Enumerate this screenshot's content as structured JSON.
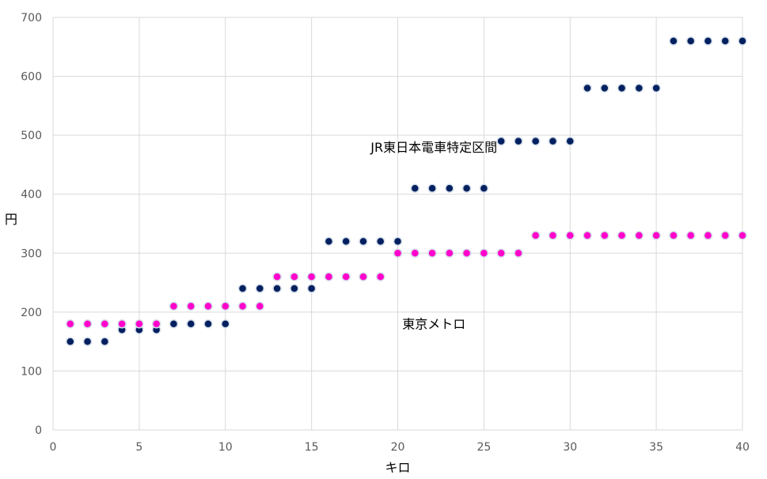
{
  "chart_data": {
    "type": "scatter",
    "xlabel": "キロ",
    "ylabel": "円",
    "xlim": [
      0,
      40
    ],
    "ylim": [
      0,
      700
    ],
    "xticks": [
      0,
      5,
      10,
      15,
      20,
      25,
      30,
      35,
      40
    ],
    "yticks": [
      0,
      100,
      200,
      300,
      400,
      500,
      600,
      700
    ],
    "grid": true,
    "legend": "none",
    "annotations": [
      {
        "text": "JR東日本電車特定区間",
        "x": 22.1,
        "y": 472
      },
      {
        "text": "東京メトロ",
        "x": 22.1,
        "y": 172
      }
    ],
    "series": [
      {
        "color": "#002060",
        "x": [
          1,
          2,
          3,
          4,
          5,
          6,
          7,
          8,
          9,
          10,
          11,
          12,
          13,
          14,
          15,
          16,
          17,
          18,
          19,
          20,
          21,
          22,
          23,
          24,
          25,
          26,
          27,
          28,
          29,
          30,
          31,
          32,
          33,
          34,
          35,
          36,
          37,
          38,
          39,
          40
        ],
        "values": [
          150,
          150,
          150,
          170,
          170,
          170,
          180,
          180,
          180,
          180,
          240,
          240,
          240,
          240,
          240,
          320,
          320,
          320,
          320,
          320,
          410,
          410,
          410,
          410,
          410,
          490,
          490,
          490,
          490,
          490,
          580,
          580,
          580,
          580,
          580,
          660,
          660,
          660,
          660,
          660
        ]
      },
      {
        "color": "#ff00cc",
        "x": [
          1,
          2,
          3,
          4,
          5,
          6,
          7,
          8,
          9,
          10,
          11,
          12,
          13,
          14,
          15,
          16,
          17,
          18,
          19,
          20,
          21,
          22,
          23,
          24,
          25,
          26,
          27,
          28,
          29,
          30,
          31,
          32,
          33,
          34,
          35,
          36,
          37,
          38,
          39,
          40
        ],
        "values": [
          180,
          180,
          180,
          180,
          180,
          180,
          210,
          210,
          210,
          210,
          210,
          210,
          260,
          260,
          260,
          260,
          260,
          260,
          260,
          300,
          300,
          300,
          300,
          300,
          300,
          300,
          300,
          330,
          330,
          330,
          330,
          330,
          330,
          330,
          330,
          330,
          330,
          330,
          330,
          330
        ]
      }
    ]
  }
}
